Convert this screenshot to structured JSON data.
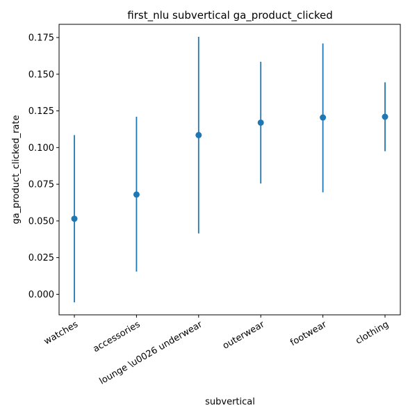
{
  "chart_data": {
    "type": "scatter",
    "title": "first_nlu subvertical ga_product_clicked",
    "xlabel": "subvertical",
    "ylabel": "ga_product_clicked_rate",
    "categories": [
      "watches",
      "accessories",
      "lounge \\u0026 underwear",
      "outerwear",
      "footwear",
      "clothing"
    ],
    "series": [
      {
        "values": [
          0.0515,
          0.068,
          0.1085,
          0.117,
          0.1205,
          0.121
        ],
        "lower": [
          -0.0055,
          0.0155,
          0.0415,
          0.0755,
          0.0695,
          0.0975
        ],
        "upper": [
          0.1085,
          0.121,
          0.1755,
          0.1585,
          0.171,
          0.1445
        ],
        "color": "#1f77b4"
      }
    ],
    "ylim": [
      -0.014,
      0.184
    ],
    "yticks": [
      0.0,
      0.025,
      0.05,
      0.075,
      0.1,
      0.125,
      0.15,
      0.175
    ],
    "ytick_labels": [
      "0.000",
      "0.025",
      "0.050",
      "0.075",
      "0.100",
      "0.125",
      "0.150",
      "0.175"
    ],
    "grid": false,
    "legend": "none"
  }
}
